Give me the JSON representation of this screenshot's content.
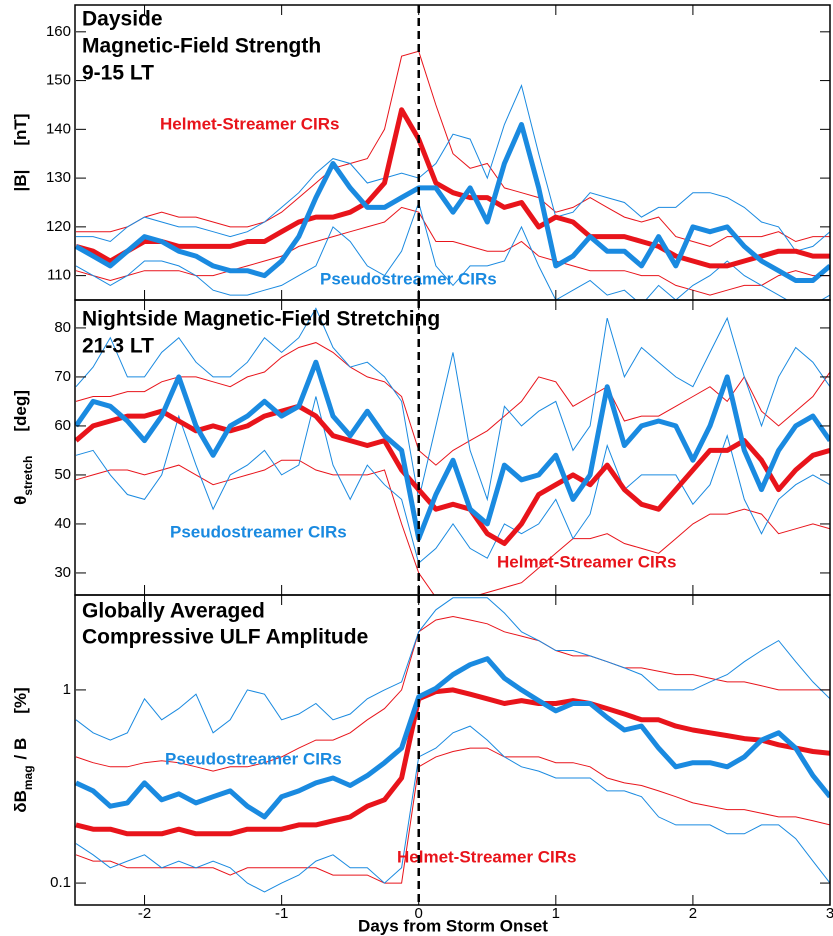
{
  "chart_data": [
    {
      "type": "line",
      "title": [
        "Dayside",
        "Magnetic-Field Strength",
        "9-15 LT"
      ],
      "ylabel": {
        "main": "|B|",
        "unit": "[nT]"
      },
      "x": [
        -2.5,
        -2.375,
        -2.25,
        -2.125,
        -2,
        -1.875,
        -1.75,
        -1.625,
        -1.5,
        -1.375,
        -1.25,
        -1.125,
        -1,
        -0.875,
        -0.75,
        -0.625,
        -0.5,
        -0.375,
        -0.25,
        -0.125,
        0,
        0.125,
        0.25,
        0.375,
        0.5,
        0.625,
        0.75,
        0.875,
        1,
        1.125,
        1.25,
        1.375,
        1.5,
        1.625,
        1.75,
        1.875,
        2,
        2.125,
        2.25,
        2.375,
        2.5,
        2.625,
        2.75,
        2.875,
        3
      ],
      "series": [
        {
          "name": "Helmet-Streamer CIRs",
          "color": "#e8141b",
          "values": [
            116,
            115,
            113,
            115,
            117,
            117,
            116,
            116,
            116,
            116,
            117,
            117,
            119,
            121,
            122,
            122,
            123,
            125,
            129,
            144,
            138,
            129,
            127,
            126,
            126,
            124,
            125,
            120,
            122,
            121,
            118,
            118,
            118,
            117,
            116,
            114,
            113,
            112,
            112,
            113,
            114,
            115,
            115,
            114,
            114
          ],
          "upper": [
            119,
            119,
            119,
            120,
            122,
            123,
            122,
            122,
            121,
            120,
            120,
            121,
            123,
            126,
            129,
            132,
            133,
            134,
            140,
            155,
            156,
            145,
            135,
            132,
            133,
            128,
            127,
            126,
            123,
            124,
            126,
            124,
            122,
            121,
            122,
            118,
            117,
            116,
            118,
            118,
            118,
            119,
            117,
            118,
            118
          ],
          "lower": [
            111,
            110,
            109,
            110,
            111,
            111,
            111,
            110,
            110,
            111,
            112,
            113,
            114,
            116,
            117,
            118,
            119,
            120,
            121,
            124,
            123,
            117,
            117,
            116,
            115,
            115,
            117,
            114,
            113,
            112,
            111,
            111,
            111,
            110,
            110,
            108,
            107,
            106,
            107,
            108,
            108,
            110,
            111,
            110,
            110
          ]
        },
        {
          "name": "Pseudostreamer CIRs",
          "color": "#1a8ae0",
          "values": [
            116,
            114,
            112,
            115,
            118,
            117,
            115,
            114,
            112,
            111,
            111,
            110,
            113,
            118,
            126,
            133,
            128,
            124,
            124,
            126,
            128,
            128,
            123,
            128,
            121,
            133,
            141,
            128,
            112,
            114,
            118,
            115,
            115,
            112,
            118,
            112,
            120,
            119,
            120,
            116,
            113,
            111,
            109,
            109,
            112
          ],
          "upper": [
            118,
            118,
            117,
            120,
            122,
            121,
            120,
            120,
            119,
            118,
            119,
            121,
            124,
            127,
            131,
            134,
            133,
            129,
            130,
            131,
            130,
            133,
            139,
            138,
            130,
            141,
            149,
            135,
            122,
            123,
            127,
            126,
            125,
            122,
            124,
            124,
            127,
            127,
            126,
            124,
            121,
            120,
            115,
            116,
            119
          ],
          "lower": [
            112,
            110,
            108,
            110,
            113,
            113,
            112,
            110,
            107,
            106,
            106,
            107,
            108,
            110,
            112,
            120,
            117,
            112,
            110,
            115,
            125,
            112,
            108,
            112,
            112,
            113,
            120,
            112,
            105,
            107,
            109,
            106,
            107,
            104,
            108,
            105,
            108,
            110,
            113,
            110,
            108,
            106,
            104,
            104,
            106
          ]
        }
      ],
      "ylim": [
        105,
        165.5
      ],
      "yticks": [
        110,
        120,
        130,
        140,
        150,
        160
      ],
      "log_scale": false
    },
    {
      "type": "line",
      "title": [
        "Nightside Magnetic-Field Stretching",
        "21-3 LT"
      ],
      "ylabel": {
        "main": "θ",
        "sub": "stretch",
        "unit": "[deg]"
      },
      "x": [
        -2.5,
        -2.375,
        -2.25,
        -2.125,
        -2,
        -1.875,
        -1.75,
        -1.625,
        -1.5,
        -1.375,
        -1.25,
        -1.125,
        -1,
        -0.875,
        -0.75,
        -0.625,
        -0.5,
        -0.375,
        -0.25,
        -0.125,
        0,
        0.125,
        0.25,
        0.375,
        0.5,
        0.625,
        0.75,
        0.875,
        1,
        1.125,
        1.25,
        1.375,
        1.5,
        1.625,
        1.75,
        1.875,
        2,
        2.125,
        2.25,
        2.375,
        2.5,
        2.625,
        2.75,
        2.875,
        3
      ],
      "series": [
        {
          "name": "Helmet-Streamer CIRs",
          "color": "#e8141b",
          "values": [
            57,
            60,
            61,
            62,
            62,
            63,
            61,
            59,
            60,
            59,
            60,
            62,
            63,
            64,
            62,
            58,
            57,
            56,
            57,
            51,
            47,
            43,
            44,
            43,
            38,
            36,
            40,
            46,
            48,
            50,
            48,
            52,
            47,
            44,
            43,
            47,
            51,
            55,
            55,
            57,
            53,
            47,
            51,
            54,
            55
          ],
          "upper": [
            65,
            66,
            66,
            67,
            67,
            69,
            70,
            70,
            69,
            68,
            70,
            71,
            74,
            76,
            77,
            75,
            72,
            70,
            69,
            66,
            55,
            52,
            55,
            57,
            59,
            62,
            65,
            70,
            69,
            64,
            66,
            68,
            61,
            62,
            62,
            64,
            66,
            68,
            65,
            70,
            63,
            60,
            63,
            66,
            71
          ],
          "lower": [
            49,
            50,
            51,
            51,
            50,
            51,
            52,
            50,
            48,
            49,
            50,
            51,
            53,
            53,
            51,
            50,
            50,
            50,
            51,
            40,
            30,
            25,
            25,
            25,
            26,
            27,
            28,
            31,
            34,
            37,
            37,
            38,
            36,
            35,
            34,
            37,
            40,
            42,
            42,
            43,
            42,
            38,
            39,
            40,
            39
          ]
        },
        {
          "name": "Pseudostreamer CIRs",
          "color": "#1a8ae0",
          "values": [
            60,
            65,
            64,
            61,
            57,
            62,
            70,
            60,
            54,
            60,
            62,
            65,
            62,
            64,
            73,
            62,
            58,
            63,
            58,
            55,
            37,
            46,
            53,
            43,
            40,
            52,
            49,
            50,
            54,
            45,
            50,
            68,
            56,
            60,
            61,
            60,
            53,
            60,
            70,
            55,
            47,
            55,
            60,
            62,
            57
          ],
          "upper": [
            68,
            72,
            78,
            70,
            70,
            75,
            78,
            73,
            70,
            70,
            73,
            78,
            75,
            78,
            84,
            76,
            72,
            73,
            70,
            65,
            45,
            60,
            75,
            55,
            45,
            64,
            60,
            63,
            65,
            55,
            60,
            82,
            70,
            76,
            73,
            70,
            68,
            75,
            82,
            70,
            60,
            70,
            76,
            73,
            68
          ],
          "lower": [
            54,
            55,
            50,
            46,
            45,
            50,
            62,
            52,
            43,
            50,
            52,
            55,
            50,
            52,
            66,
            52,
            45,
            52,
            48,
            45,
            32,
            35,
            40,
            35,
            33,
            40,
            38,
            40,
            45,
            37,
            42,
            56,
            47,
            50,
            50,
            50,
            44,
            48,
            58,
            45,
            38,
            45,
            48,
            50,
            48
          ]
        }
      ],
      "ylim": [
        25.5,
        85.7
      ],
      "yticks": [
        30,
        40,
        50,
        60,
        70,
        80
      ],
      "log_scale": false
    },
    {
      "type": "line",
      "title": [
        "Globally Averaged",
        "Compressive ULF Amplitude"
      ],
      "ylabel": {
        "main": "δB",
        "sub": "mag",
        "rest": "/ B",
        "unit": "[%]"
      },
      "x": [
        -2.5,
        -2.375,
        -2.25,
        -2.125,
        -2,
        -1.875,
        -1.75,
        -1.625,
        -1.5,
        -1.375,
        -1.25,
        -1.125,
        -1,
        -0.875,
        -0.75,
        -0.625,
        -0.5,
        -0.375,
        -0.25,
        -0.125,
        0,
        0.125,
        0.25,
        0.375,
        0.5,
        0.625,
        0.75,
        0.875,
        1,
        1.125,
        1.25,
        1.375,
        1.5,
        1.625,
        1.75,
        1.875,
        2,
        2.125,
        2.25,
        2.375,
        2.5,
        2.625,
        2.75,
        2.875,
        3
      ],
      "series": [
        {
          "name": "Helmet-Streamer CIRs",
          "color": "#e8141b",
          "values": [
            0.2,
            0.19,
            0.19,
            0.18,
            0.18,
            0.18,
            0.19,
            0.18,
            0.18,
            0.18,
            0.19,
            0.19,
            0.19,
            0.2,
            0.2,
            0.21,
            0.22,
            0.25,
            0.27,
            0.35,
            0.9,
            0.98,
            1.0,
            0.95,
            0.9,
            0.85,
            0.88,
            0.85,
            0.85,
            0.88,
            0.85,
            0.8,
            0.75,
            0.7,
            0.7,
            0.65,
            0.62,
            0.6,
            0.58,
            0.56,
            0.55,
            0.52,
            0.5,
            0.48,
            0.47
          ],
          "upper": [
            0.45,
            0.42,
            0.4,
            0.4,
            0.42,
            0.43,
            0.42,
            0.4,
            0.38,
            0.4,
            0.4,
            0.42,
            0.45,
            0.5,
            0.55,
            0.55,
            0.6,
            0.7,
            0.8,
            1.0,
            2.0,
            2.3,
            2.4,
            2.3,
            2.2,
            2.0,
            1.9,
            1.8,
            1.6,
            1.5,
            1.5,
            1.4,
            1.3,
            1.3,
            1.25,
            1.2,
            1.2,
            1.15,
            1.1,
            1.1,
            1.05,
            1.0,
            1.0,
            1.0,
            1.0
          ],
          "lower": [
            0.14,
            0.13,
            0.13,
            0.12,
            0.12,
            0.12,
            0.12,
            0.12,
            0.12,
            0.11,
            0.12,
            0.12,
            0.12,
            0.12,
            0.12,
            0.11,
            0.11,
            0.11,
            0.1,
            0.1,
            0.4,
            0.45,
            0.48,
            0.5,
            0.5,
            0.45,
            0.45,
            0.45,
            0.42,
            0.42,
            0.4,
            0.35,
            0.33,
            0.32,
            0.3,
            0.28,
            0.26,
            0.25,
            0.24,
            0.24,
            0.23,
            0.22,
            0.22,
            0.21,
            0.2
          ]
        },
        {
          "name": "Pseudostreamer CIRs",
          "color": "#1a8ae0",
          "values": [
            0.33,
            0.3,
            0.25,
            0.26,
            0.33,
            0.27,
            0.29,
            0.26,
            0.28,
            0.3,
            0.25,
            0.22,
            0.28,
            0.3,
            0.33,
            0.35,
            0.32,
            0.36,
            0.42,
            0.5,
            0.92,
            1.02,
            1.2,
            1.35,
            1.45,
            1.15,
            1.0,
            0.88,
            0.78,
            0.85,
            0.85,
            0.72,
            0.62,
            0.65,
            0.5,
            0.4,
            0.42,
            0.42,
            0.4,
            0.45,
            0.55,
            0.6,
            0.5,
            0.36,
            0.28
          ],
          "upper": [
            0.7,
            0.6,
            0.55,
            0.6,
            0.9,
            0.7,
            0.8,
            0.95,
            0.6,
            0.7,
            1.0,
            0.95,
            0.7,
            0.75,
            0.85,
            0.7,
            0.75,
            0.9,
            1.0,
            1.1,
            2.0,
            2.6,
            3.0,
            3.0,
            3.0,
            2.5,
            2.0,
            1.8,
            1.6,
            1.6,
            1.5,
            1.4,
            1.3,
            1.2,
            1.0,
            1.0,
            1.0,
            1.1,
            1.2,
            1.4,
            1.6,
            1.8,
            1.4,
            1.1,
            0.9
          ],
          "lower": [
            0.16,
            0.14,
            0.12,
            0.13,
            0.14,
            0.12,
            0.13,
            0.12,
            0.13,
            0.12,
            0.1,
            0.09,
            0.1,
            0.11,
            0.13,
            0.14,
            0.12,
            0.12,
            0.1,
            0.12,
            0.45,
            0.5,
            0.6,
            0.65,
            0.55,
            0.45,
            0.4,
            0.38,
            0.35,
            0.35,
            0.35,
            0.3,
            0.3,
            0.28,
            0.22,
            0.2,
            0.2,
            0.2,
            0.18,
            0.18,
            0.2,
            0.2,
            0.17,
            0.13,
            0.1
          ]
        }
      ],
      "ylim": [
        0.077,
        3.1
      ],
      "yticks": [
        0.1,
        1
      ],
      "log_scale": true,
      "xlim": [
        -2.5,
        3
      ],
      "xticks": [
        -2,
        -1,
        0,
        1,
        2,
        3
      ],
      "xlabel": "Days from Storm Onset",
      "onset_line": 0
    }
  ]
}
